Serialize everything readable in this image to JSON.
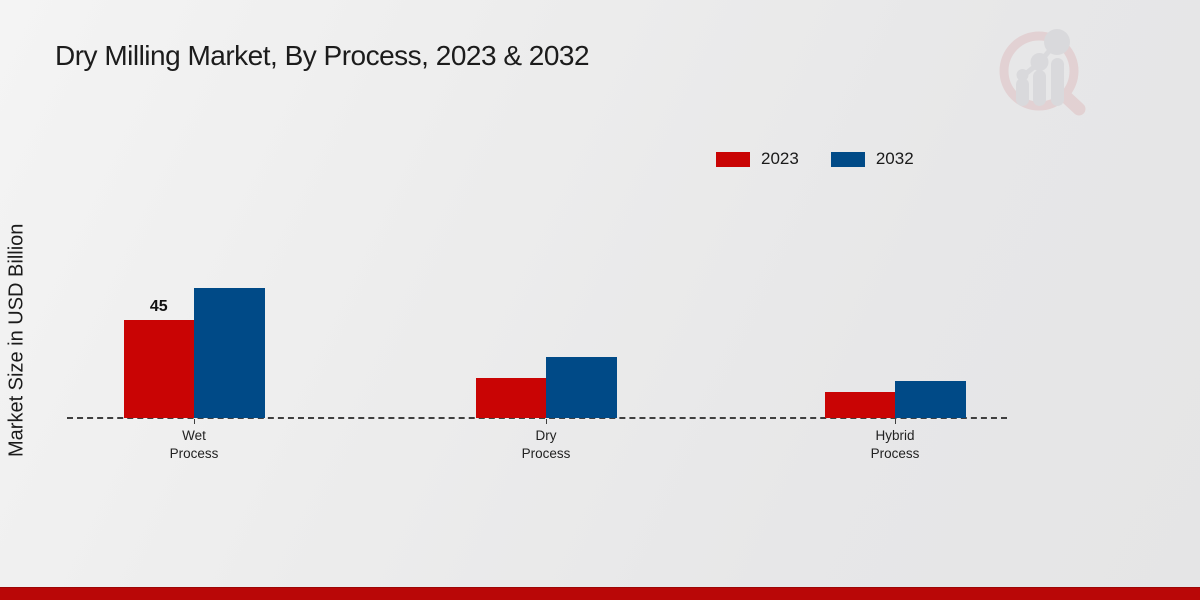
{
  "title": "Dry Milling Market, By Process, 2023 & 2032",
  "ylabel": "Market Size in USD Billion",
  "colors": {
    "series_2023_red": "#c90404",
    "series_2032_blue": "#004a87",
    "footer_red": "#b90707",
    "baseline_gray": "#3f3f3f",
    "background_light": "#ededed",
    "logo_pink": "#dfc0c2",
    "logo_gray": "#cfcfd3"
  },
  "logo": {
    "name": "magnifier-bar-chart-logo"
  },
  "chart_data": {
    "type": "bar",
    "categories": [
      "Wet Process",
      "Dry Process",
      "Hybrid Process"
    ],
    "series": [
      {
        "name": "2023",
        "color": "#c90404",
        "values": [
          45,
          18.4,
          11.9
        ]
      },
      {
        "name": "2032",
        "color": "#004a87",
        "values": [
          59.7,
          28.0,
          17.0
        ]
      }
    ],
    "bar_labels": [
      {
        "category_index": 0,
        "series_index": 0,
        "text": "45"
      }
    ],
    "title": "Dry Milling Market, By Process, 2023 & 2032",
    "xlabel": "",
    "ylabel": "Market Size in USD Billion",
    "ylim": [
      0,
      65
    ],
    "grid": false,
    "axis_line_style": "dashed-baseline-only",
    "legend_position": "top-right"
  }
}
